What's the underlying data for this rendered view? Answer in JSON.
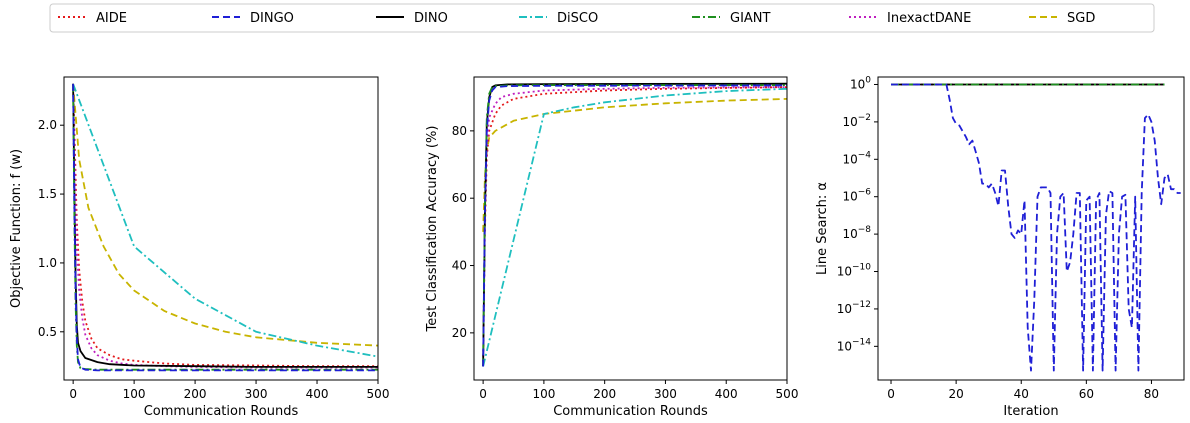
{
  "legend": [
    {
      "name": "AIDE",
      "color": "#e41a1c",
      "dash": "dotted"
    },
    {
      "name": "DINGO",
      "color": "#1f1fd6",
      "dash": "dashed"
    },
    {
      "name": "DINO",
      "color": "#000000",
      "dash": "solid"
    },
    {
      "name": "DiSCO",
      "color": "#1fbfbf",
      "dash": "dashdot"
    },
    {
      "name": "GIANT",
      "color": "#1f8f1f",
      "dash": "dashdot"
    },
    {
      "name": "InexactDANE",
      "color": "#bf1fbf",
      "dash": "dotted"
    },
    {
      "name": "SGD",
      "color": "#c8b400",
      "dash": "dashed"
    }
  ],
  "chart_data": [
    {
      "type": "line",
      "xlabel": "Communication Rounds",
      "ylabel": "Objective Function: f (w)",
      "xlim": [
        -15,
        500
      ],
      "ylim": [
        0.15,
        2.35
      ],
      "xticks": [
        "0",
        "100",
        "200",
        "300",
        "400",
        "500"
      ],
      "yticks": [
        "0.5",
        "1.0",
        "1.5",
        "2.0"
      ],
      "series": [
        {
          "name": "AIDE",
          "x": [
            0,
            3,
            6,
            10,
            15,
            20,
            30,
            40,
            60,
            80,
            100,
            150,
            200,
            300,
            400,
            500
          ],
          "y": [
            2.3,
            1.8,
            1.3,
            0.95,
            0.72,
            0.58,
            0.45,
            0.38,
            0.33,
            0.3,
            0.29,
            0.27,
            0.26,
            0.255,
            0.25,
            0.25
          ]
        },
        {
          "name": "DINGO",
          "x": [
            0,
            2,
            4,
            6,
            8,
            12,
            20,
            40,
            100,
            500
          ],
          "y": [
            2.3,
            1.4,
            0.8,
            0.45,
            0.3,
            0.24,
            0.225,
            0.22,
            0.22,
            0.22
          ]
        },
        {
          "name": "DINO",
          "x": [
            0,
            2,
            4,
            6,
            8,
            12,
            20,
            40,
            60,
            100,
            200,
            300,
            500
          ],
          "y": [
            2.3,
            1.5,
            0.9,
            0.55,
            0.42,
            0.36,
            0.31,
            0.28,
            0.265,
            0.255,
            0.25,
            0.245,
            0.245
          ]
        },
        {
          "name": "DiSCO",
          "x": [
            0,
            100,
            200,
            300,
            400,
            500
          ],
          "y": [
            2.3,
            1.12,
            0.74,
            0.5,
            0.4,
            0.32
          ]
        },
        {
          "name": "GIANT",
          "x": [
            0,
            2,
            4,
            6,
            8,
            12,
            20,
            40,
            100,
            500
          ],
          "y": [
            2.3,
            1.3,
            0.7,
            0.4,
            0.28,
            0.235,
            0.23,
            0.225,
            0.225,
            0.225
          ]
        },
        {
          "name": "InexactDANE",
          "x": [
            0,
            3,
            6,
            10,
            15,
            20,
            30,
            40,
            60,
            80,
            100,
            150,
            200,
            300,
            400,
            500
          ],
          "y": [
            2.3,
            1.6,
            1.1,
            0.8,
            0.6,
            0.48,
            0.38,
            0.33,
            0.29,
            0.27,
            0.26,
            0.25,
            0.245,
            0.24,
            0.24,
            0.24
          ]
        },
        {
          "name": "SGD",
          "x": [
            0,
            10,
            25,
            50,
            75,
            100,
            150,
            200,
            250,
            300,
            400,
            500
          ],
          "y": [
            2.3,
            1.75,
            1.4,
            1.12,
            0.92,
            0.8,
            0.65,
            0.56,
            0.5,
            0.46,
            0.42,
            0.4
          ]
        }
      ]
    },
    {
      "type": "line",
      "xlabel": "Communication Rounds",
      "ylabel": "Test Classification Accuracy (%)",
      "xlim": [
        -15,
        500
      ],
      "ylim": [
        6,
        96
      ],
      "xticks": [
        "0",
        "100",
        "200",
        "300",
        "400",
        "500"
      ],
      "yticks": [
        "20",
        "40",
        "60",
        "80"
      ],
      "series": [
        {
          "name": "AIDE",
          "x": [
            0,
            3,
            6,
            10,
            20,
            30,
            50,
            100,
            200,
            300,
            500
          ],
          "y": [
            10,
            50,
            72,
            80,
            85,
            87.5,
            89.5,
            91,
            92,
            92.5,
            93
          ]
        },
        {
          "name": "DINGO",
          "x": [
            0,
            3,
            6,
            10,
            15,
            20,
            40,
            100,
            500
          ],
          "y": [
            10,
            55,
            80,
            89,
            92,
            93,
            93.3,
            93.4,
            93.5
          ]
        },
        {
          "name": "DINO",
          "x": [
            0,
            3,
            6,
            10,
            15,
            20,
            40,
            100,
            500
          ],
          "y": [
            10,
            55,
            82,
            90,
            93,
            93.5,
            93.8,
            93.9,
            94
          ]
        },
        {
          "name": "DiSCO",
          "x": [
            0,
            100,
            150,
            200,
            300,
            400,
            500
          ],
          "y": [
            10,
            85,
            87,
            88.5,
            90.5,
            91.8,
            92.5
          ]
        },
        {
          "name": "GIANT",
          "x": [
            0,
            3,
            6,
            10,
            15,
            20,
            40,
            100,
            500
          ],
          "y": [
            10,
            58,
            84,
            91,
            93,
            93.3,
            93.5,
            93.6,
            93.6
          ]
        },
        {
          "name": "InexactDANE",
          "x": [
            0,
            3,
            6,
            10,
            20,
            30,
            50,
            100,
            200,
            300,
            500
          ],
          "y": [
            10,
            55,
            76,
            84,
            88,
            90,
            91,
            92,
            92.5,
            92.8,
            93
          ]
        },
        {
          "name": "SGD",
          "x": [
            0,
            3,
            6,
            10,
            20,
            50,
            100,
            200,
            300,
            400,
            500
          ],
          "y": [
            50,
            66,
            74,
            78,
            80,
            83,
            85,
            87,
            88.2,
            89,
            89.5
          ]
        }
      ]
    },
    {
      "type": "line",
      "xlabel": "Iteration",
      "ylabel": "Line Search: α",
      "xlim": [
        -4,
        90
      ],
      "ylim": [
        -15.8,
        0.4
      ],
      "yscale": "log",
      "xticks": [
        "0",
        "20",
        "40",
        "60",
        "80"
      ],
      "yticks": [
        "10^0",
        "10^-2",
        "10^-4",
        "10^-6",
        "10^-8",
        "10^-10",
        "10^-12",
        "10^-14"
      ],
      "series": [
        {
          "name": "DINGO",
          "x": [
            0,
            17,
            18,
            19,
            20,
            21,
            22,
            23,
            24,
            25,
            26,
            27,
            28,
            29,
            30,
            31,
            32,
            33,
            34,
            35,
            36,
            37,
            38,
            39,
            40,
            41,
            42,
            43,
            44,
            45,
            46,
            47,
            48,
            49,
            50,
            51,
            52,
            53,
            54,
            55,
            56,
            57,
            58,
            59,
            60,
            61,
            62,
            63,
            64,
            65,
            66,
            67,
            68,
            69,
            70,
            71,
            72,
            73,
            74,
            75,
            76,
            77,
            78,
            79,
            80,
            81,
            82,
            83,
            84,
            85,
            86,
            87,
            88,
            89
          ],
          "y": [
            0,
            0,
            -0.8,
            -1.8,
            -2.1,
            -2.2,
            -2.5,
            -2.8,
            -3.2,
            -3.0,
            -3.6,
            -4.2,
            -5.3,
            -5.3,
            -5.5,
            -5.3,
            -5.8,
            -6.5,
            -4.6,
            -4.6,
            -6.5,
            -8.0,
            -8.2,
            -7.8,
            -8.0,
            -6.2,
            -13.0,
            -15.3,
            -11.5,
            -6.0,
            -5.5,
            -5.5,
            -5.5,
            -5.8,
            -15.3,
            -8.0,
            -6.0,
            -5.8,
            -10.0,
            -9.5,
            -8.0,
            -5.8,
            -5.8,
            -15.3,
            -6.2,
            -6.0,
            -15.3,
            -6.2,
            -5.8,
            -15.3,
            -7.0,
            -5.7,
            -5.8,
            -15.3,
            -8.0,
            -6.0,
            -5.9,
            -12.0,
            -13.0,
            -6.0,
            -15.3,
            -5.8,
            -1.8,
            -1.6,
            -2.0,
            -3.0,
            -5.0,
            -6.4,
            -5.0,
            -4.8,
            -5.6,
            -5.6,
            -5.8,
            -5.8
          ]
        },
        {
          "name": "DINO",
          "x": [
            0,
            84
          ],
          "y": [
            0,
            0
          ]
        },
        {
          "name": "AIDE",
          "x": [
            0,
            84
          ],
          "y": [
            0,
            0
          ]
        },
        {
          "name": "DiSCO",
          "x": [
            0,
            84
          ],
          "y": [
            0,
            0
          ]
        },
        {
          "name": "GIANT",
          "x": [
            0,
            84
          ],
          "y": [
            0,
            0
          ]
        },
        {
          "name": "InexactDANE",
          "x": [
            0,
            84
          ],
          "y": [
            0,
            0
          ]
        },
        {
          "name": "SGD",
          "x": [
            0,
            84
          ],
          "y": [
            0,
            0
          ]
        }
      ]
    }
  ]
}
